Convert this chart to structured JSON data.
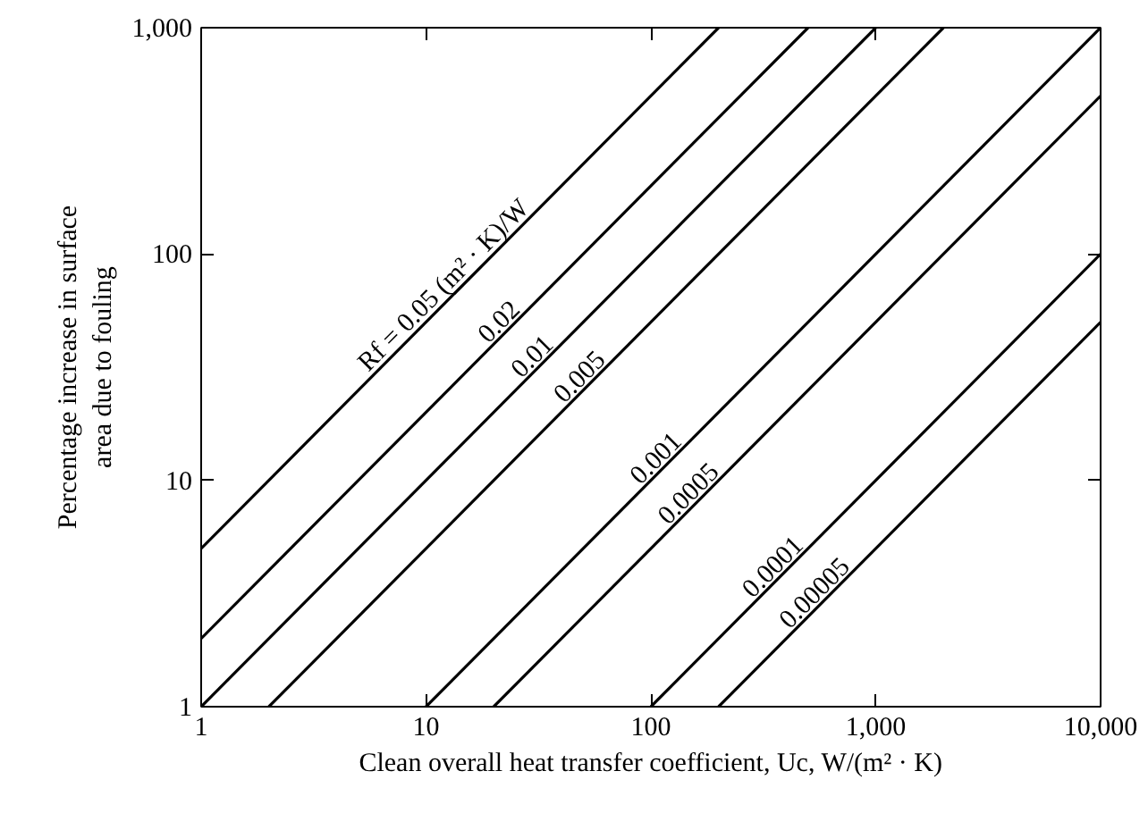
{
  "chart_data": {
    "type": "line",
    "xlabel": "Clean overall heat transfer coefficient, Uc, W/(m² · K)",
    "ylabel": "Percentage increase in surface\narea due to fouling",
    "log": "xy",
    "grid": false,
    "marker": "none",
    "line_style": "solid",
    "xlim": [
      1,
      10000
    ],
    "ylim": [
      1,
      1000
    ],
    "xticks": [
      1,
      10,
      100,
      {
        "value": 1000,
        "label": "1,000"
      },
      {
        "value": 10000,
        "label": "10,000"
      }
    ],
    "yticks": [
      1,
      10,
      100,
      {
        "value": 1000,
        "label": "1,000"
      }
    ],
    "series": [
      {
        "name": "Rf = 0.05 (m² · K)/W",
        "color": "#000000",
        "x": [
          1,
          200
        ],
        "values": [
          5,
          1000
        ]
      },
      {
        "name": "0.02",
        "color": "#000000",
        "x": [
          1,
          500
        ],
        "values": [
          2,
          1000
        ]
      },
      {
        "name": "0.01",
        "color": "#000000",
        "x": [
          1,
          1000
        ],
        "values": [
          1,
          1000
        ]
      },
      {
        "name": "0.005",
        "color": "#000000",
        "x": [
          2,
          2000
        ],
        "values": [
          1,
          1000
        ]
      },
      {
        "name": "0.001",
        "color": "#000000",
        "x": [
          10,
          10000
        ],
        "values": [
          1,
          1000
        ]
      },
      {
        "name": "0.0005",
        "color": "#000000",
        "x": [
          20,
          10000
        ],
        "values": [
          1,
          500
        ]
      },
      {
        "name": "0.0001",
        "color": "#000000",
        "x": [
          100,
          10000
        ],
        "values": [
          1,
          100
        ]
      },
      {
        "name": "0.00005",
        "color": "#000000",
        "x": [
          200,
          10000
        ],
        "values": [
          1,
          50
        ]
      }
    ]
  }
}
